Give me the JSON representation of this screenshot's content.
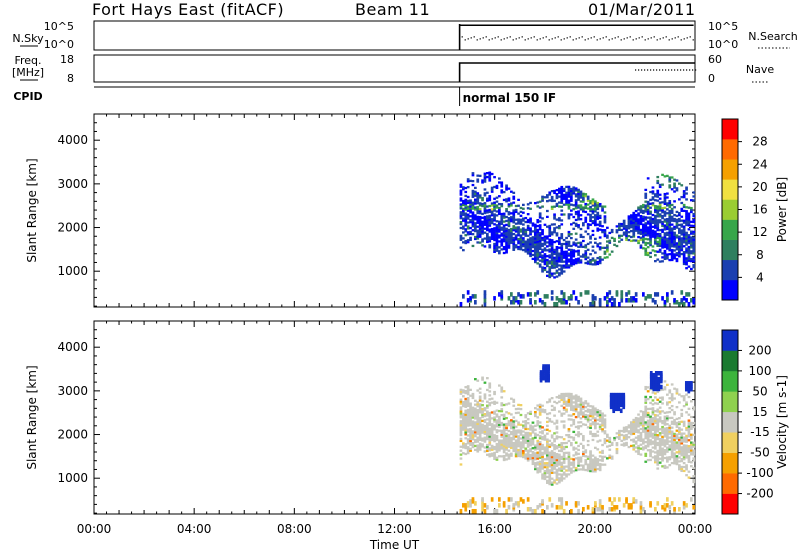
{
  "header": {
    "station": "Fort Hays East (fitACF)",
    "beam": "Beam 11",
    "date": "01/Mar/2011"
  },
  "top_panels": {
    "nsky_label": "N.Sky",
    "nsky_ticks": [
      "10^5",
      "10^0"
    ],
    "nsearch_label": "N.Search",
    "nsearch_ticks": [
      "10^5",
      "10^0"
    ],
    "freq_label_line1": "Freq.",
    "freq_label_line2": "[MHz]",
    "freq_ticks": [
      "18",
      "8"
    ],
    "nave_label": "Nave",
    "nave_ticks": [
      "60",
      "0"
    ],
    "cpid_label": "CPID",
    "cpid_text": "normal 150 IF"
  },
  "colors": {
    "power_scale": [
      "#0000ff",
      "#1a3fb0",
      "#2f7f5f",
      "#37a64a",
      "#9acd32",
      "#f0e040",
      "#f5a000",
      "#ff6a00",
      "#ff0000"
    ],
    "velocity_scale": [
      "#1030c8",
      "#1a7a30",
      "#3cb43c",
      "#8fd14f",
      "#c8c8c0",
      "#f0d060",
      "#f5a000",
      "#ff6a00",
      "#ff0000"
    ],
    "ground_scatter": "#c8c8c0"
  },
  "chart_data": [
    {
      "type": "heatmap",
      "title": "Power",
      "xlabel": "",
      "ylabel": "Slant Range [km]",
      "x_ticks": [
        "00:00",
        "04:00",
        "08:00",
        "12:00",
        "16:00",
        "20:00",
        "00:00"
      ],
      "xlim_hours": [
        0,
        24
      ],
      "y_ticks": [
        1000,
        2000,
        3000,
        4000
      ],
      "ylim": [
        180,
        4600
      ],
      "data_start_hour": 14.6,
      "colorbar": {
        "label": "Power [dB]",
        "ticks": [
          "4",
          "8",
          "12",
          "16",
          "20",
          "24",
          "28"
        ],
        "range": [
          0,
          30
        ]
      }
    },
    {
      "type": "heatmap",
      "title": "Velocity",
      "xlabel": "Time UT",
      "ylabel": "Slant Range [km]",
      "x_ticks": [
        "00:00",
        "04:00",
        "08:00",
        "12:00",
        "16:00",
        "20:00",
        "00:00"
      ],
      "xlim_hours": [
        0,
        24
      ],
      "y_ticks": [
        1000,
        2000,
        3000,
        4000
      ],
      "ylim": [
        180,
        4600
      ],
      "data_start_hour": 14.6,
      "colorbar": {
        "label": "Velocity [m s-1]",
        "ticks": [
          "200",
          "100",
          "50",
          "15",
          "-15",
          "-50",
          "-100",
          "-200"
        ],
        "range": [
          -250,
          250
        ]
      }
    }
  ]
}
